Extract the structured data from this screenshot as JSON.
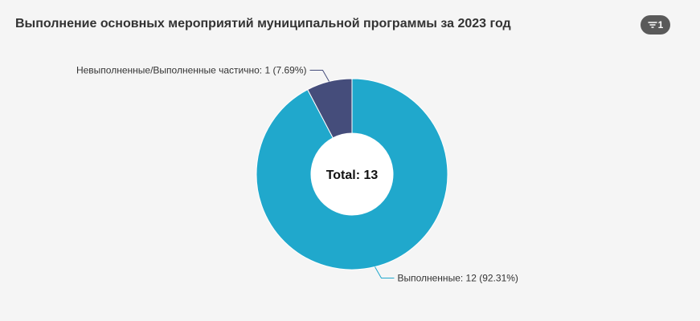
{
  "header": {
    "title": "Выполнение основных мероприятий муниципальной программы за 2023 год",
    "filter_count": "1",
    "filter_icon": "filter-icon"
  },
  "chart_data": {
    "type": "pie",
    "donut": true,
    "center_text": "Total: 13",
    "total": 13,
    "slices": [
      {
        "name": "Невыполненные/Выполненные частично",
        "value": 1,
        "percent": 7.69,
        "label": "Невыполненные/Выполненные частично: 1 (7.69%)",
        "color": "#454d7b"
      },
      {
        "name": "Выполненные",
        "value": 12,
        "percent": 92.31,
        "label": "Выполненные: 12 (92.31%)",
        "color": "#20a8cc"
      }
    ]
  }
}
